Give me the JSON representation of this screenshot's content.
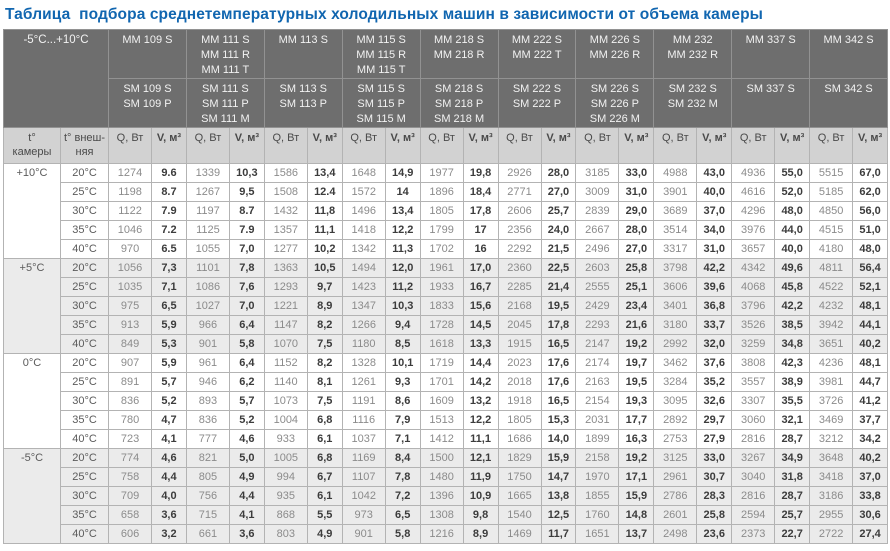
{
  "title": "Таблица  подбора среднетемпературных холодильных машин в зависимости от объема камеры",
  "colors": {
    "title": "#1166b0",
    "header_bg": "#6e6e6e",
    "subheader_bg": "#d2d2d2",
    "stripe": "#ebebeb"
  },
  "header": {
    "range_label": "-5°C...+10°C",
    "machines": [
      {
        "mm": [
          "MM 109 S"
        ],
        "sm": [
          "SM 109 S",
          "SM 109 P"
        ]
      },
      {
        "mm": [
          "MM 111 S",
          "MM 111 R",
          "MM 111 T"
        ],
        "sm": [
          "SM 111 S",
          "SM 111 P",
          "SM 111 M"
        ]
      },
      {
        "mm": [
          "MM 113 S"
        ],
        "sm": [
          "SM 113 S",
          "SM 113 P"
        ]
      },
      {
        "mm": [
          "MM 115 S",
          "MM 115 R",
          "MM 115 T"
        ],
        "sm": [
          "SM 115 S",
          "SM 115 P",
          "SM 115 M"
        ]
      },
      {
        "mm": [
          "MM 218 S",
          "MM 218 R"
        ],
        "sm": [
          "SM 218 S",
          "SM 218 P",
          "SM 218 M"
        ]
      },
      {
        "mm": [
          "MM 222 S",
          "MM 222 T"
        ],
        "sm": [
          "SM 222 S",
          "SM 222 P"
        ]
      },
      {
        "mm": [
          "MM 226 S",
          "MM 226 R"
        ],
        "sm": [
          "SM 226 S",
          "SM 226 P",
          "SM 226 M"
        ]
      },
      {
        "mm": [
          "MM 232",
          "MM 232 R"
        ],
        "sm": [
          "SM 232 S",
          "SM 232 M"
        ]
      },
      {
        "mm": [
          "MM 337 S"
        ],
        "sm": [
          "SM 337 S"
        ]
      },
      {
        "mm": [
          "MM 342 S"
        ],
        "sm": [
          "SM 342 S"
        ]
      }
    ]
  },
  "subheader": {
    "camera_col": [
      "t°",
      "камеры"
    ],
    "external_col": [
      "t° внеш-",
      "няя"
    ],
    "q_label": "Q, Вт",
    "v_label": "V, м³"
  },
  "groups": [
    {
      "camera_temp": "+10°C",
      "rows": [
        {
          "ext": "20°C",
          "cells": [
            "1274",
            "9.6",
            "1339",
            "10,3",
            "1586",
            "13,4",
            "1648",
            "14,9",
            "1977",
            "19,8",
            "2926",
            "28,0",
            "3185",
            "33,0",
            "4988",
            "43,0",
            "4936",
            "55,0",
            "5515",
            "67,0"
          ]
        },
        {
          "ext": "25°C",
          "cells": [
            "1198",
            "8.7",
            "1267",
            "9,5",
            "1508",
            "12.4",
            "1572",
            "14",
            "1896",
            "18,4",
            "2771",
            "27,0",
            "3009",
            "31,0",
            "3901",
            "40,0",
            "4616",
            "52,0",
            "5185",
            "62,0"
          ]
        },
        {
          "ext": "30°C",
          "cells": [
            "1122",
            "7.9",
            "1197",
            "8.7",
            "1432",
            "11,8",
            "1496",
            "13,4",
            "1805",
            "17,8",
            "2606",
            "25,7",
            "2839",
            "29,0",
            "3689",
            "37,0",
            "4296",
            "48,0",
            "4850",
            "56,0"
          ]
        },
        {
          "ext": "35°C",
          "cells": [
            "1046",
            "7.2",
            "1125",
            "7.9",
            "1357",
            "11,1",
            "1418",
            "12,2",
            "1799",
            "17",
            "2356",
            "24,0",
            "2667",
            "28,0",
            "3514",
            "34,0",
            "3976",
            "44,0",
            "4515",
            "51,0"
          ]
        },
        {
          "ext": "40°C",
          "cells": [
            "970",
            "6.5",
            "1055",
            "7,0",
            "1277",
            "10,2",
            "1342",
            "11,3",
            "1702",
            "16",
            "2292",
            "21,5",
            "2496",
            "27,0",
            "3317",
            "31,0",
            "3657",
            "40,0",
            "4180",
            "48,0"
          ]
        }
      ]
    },
    {
      "camera_temp": "+5°C",
      "rows": [
        {
          "ext": "20°C",
          "cells": [
            "1056",
            "7,3",
            "1101",
            "7,8",
            "1363",
            "10,5",
            "1494",
            "12,0",
            "1961",
            "17,0",
            "2360",
            "22,5",
            "2603",
            "25,8",
            "3798",
            "42,2",
            "4342",
            "49,6",
            "4811",
            "56,4"
          ]
        },
        {
          "ext": "25°C",
          "cells": [
            "1035",
            "7,1",
            "1086",
            "7,6",
            "1293",
            "9,7",
            "1423",
            "11,2",
            "1933",
            "16,7",
            "2285",
            "21,4",
            "2555",
            "25,1",
            "3606",
            "39,6",
            "4068",
            "45,8",
            "4522",
            "52,1"
          ]
        },
        {
          "ext": "30°C",
          "cells": [
            "975",
            "6,5",
            "1027",
            "7,0",
            "1221",
            "8,9",
            "1347",
            "10,3",
            "1833",
            "15,6",
            "2168",
            "19,5",
            "2429",
            "23,4",
            "3401",
            "36,8",
            "3796",
            "42,2",
            "4232",
            "48,1"
          ]
        },
        {
          "ext": "35°C",
          "cells": [
            "913",
            "5,9",
            "966",
            "6,4",
            "1147",
            "8,2",
            "1266",
            "9,4",
            "1728",
            "14,5",
            "2045",
            "17,8",
            "2293",
            "21,6",
            "3180",
            "33,7",
            "3526",
            "38,5",
            "3942",
            "44,1"
          ]
        },
        {
          "ext": "40°C",
          "cells": [
            "849",
            "5,3",
            "901",
            "5,8",
            "1070",
            "7,5",
            "1180",
            "8,5",
            "1618",
            "13,3",
            "1915",
            "16,5",
            "2147",
            "19,2",
            "2992",
            "32,0",
            "3259",
            "34,8",
            "3651",
            "40,2"
          ]
        }
      ]
    },
    {
      "camera_temp": "0°C",
      "rows": [
        {
          "ext": "20°C",
          "cells": [
            "907",
            "5,9",
            "961",
            "6,4",
            "1152",
            "8,2",
            "1328",
            "10,1",
            "1719",
            "14,4",
            "2023",
            "17,6",
            "2174",
            "19,7",
            "3462",
            "37,6",
            "3808",
            "42,3",
            "4236",
            "48,1"
          ]
        },
        {
          "ext": "25°C",
          "cells": [
            "891",
            "5,7",
            "946",
            "6,2",
            "1140",
            "8,1",
            "1261",
            "9,3",
            "1701",
            "14,2",
            "2018",
            "17,6",
            "2163",
            "19,5",
            "3284",
            "35,2",
            "3557",
            "38,9",
            "3981",
            "44,7"
          ]
        },
        {
          "ext": "30°C",
          "cells": [
            "836",
            "5,2",
            "893",
            "5,7",
            "1073",
            "7,5",
            "1191",
            "8,6",
            "1609",
            "13,2",
            "1918",
            "16,5",
            "2154",
            "19,3",
            "3095",
            "32,6",
            "3307",
            "35,5",
            "3726",
            "41,2"
          ]
        },
        {
          "ext": "35°C",
          "cells": [
            "780",
            "4,7",
            "836",
            "5,2",
            "1004",
            "6,8",
            "1116",
            "7,9",
            "1513",
            "12,2",
            "1805",
            "15,3",
            "2031",
            "17,7",
            "2892",
            "29,7",
            "3060",
            "32,1",
            "3469",
            "37,7"
          ]
        },
        {
          "ext": "40°C",
          "cells": [
            "723",
            "4,1",
            "777",
            "4,6",
            "933",
            "6,1",
            "1037",
            "7,1",
            "1412",
            "11,1",
            "1686",
            "14,0",
            "1899",
            "16,3",
            "2753",
            "27,9",
            "2816",
            "28,7",
            "3212",
            "34,2"
          ]
        }
      ]
    },
    {
      "camera_temp": "-5°C",
      "rows": [
        {
          "ext": "20°C",
          "cells": [
            "774",
            "4,6",
            "821",
            "5,0",
            "1005",
            "6,8",
            "1169",
            "8,4",
            "1500",
            "12,1",
            "1829",
            "15,9",
            "2158",
            "19,2",
            "3125",
            "33,0",
            "3267",
            "34,9",
            "3648",
            "40,2"
          ]
        },
        {
          "ext": "25°C",
          "cells": [
            "758",
            "4,4",
            "805",
            "4,9",
            "994",
            "6,7",
            "1107",
            "7,8",
            "1480",
            "11,9",
            "1750",
            "14,7",
            "1970",
            "17,1",
            "2961",
            "30,7",
            "3040",
            "31,8",
            "3418",
            "37,0"
          ]
        },
        {
          "ext": "30°C",
          "cells": [
            "709",
            "4,0",
            "756",
            "4,4",
            "935",
            "6,1",
            "1042",
            "7,2",
            "1396",
            "10,9",
            "1665",
            "13,8",
            "1855",
            "15,9",
            "2786",
            "28,3",
            "2816",
            "28,7",
            "3186",
            "33,8"
          ]
        },
        {
          "ext": "35°C",
          "cells": [
            "658",
            "3,6",
            "715",
            "4,1",
            "868",
            "5,5",
            "973",
            "6,5",
            "1308",
            "9,8",
            "1540",
            "12,5",
            "1760",
            "14,8",
            "2601",
            "25,8",
            "2594",
            "25,7",
            "2955",
            "30,6"
          ]
        },
        {
          "ext": "40°C",
          "cells": [
            "606",
            "3,2",
            "661",
            "3,6",
            "803",
            "4,9",
            "901",
            "5,8",
            "1216",
            "8,9",
            "1469",
            "11,7",
            "1651",
            "13,7",
            "2498",
            "23,6",
            "2373",
            "22,7",
            "2722",
            "27,4"
          ]
        }
      ]
    }
  ]
}
